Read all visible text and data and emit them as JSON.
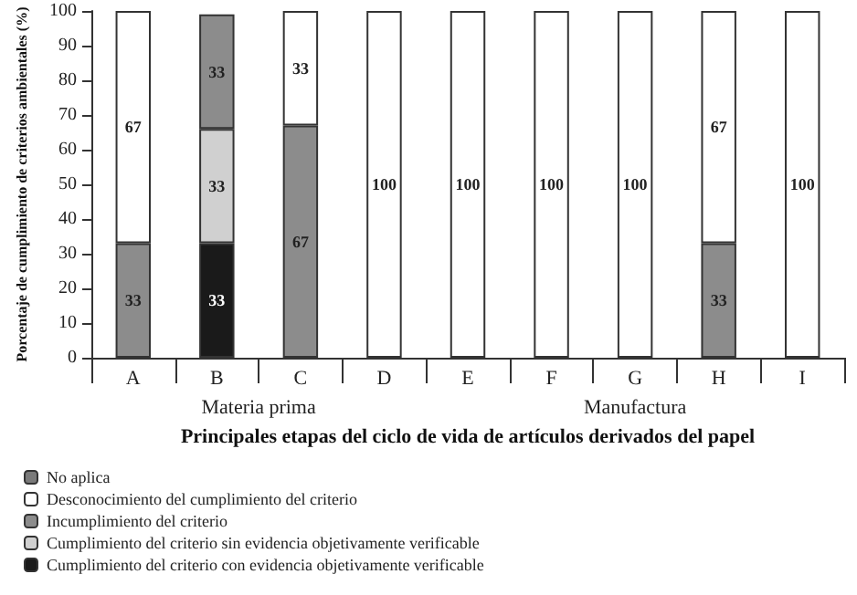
{
  "chart_data": {
    "type": "bar",
    "stacked": true,
    "xlabel": "Principales etapas del ciclo de vida de artículos derivados del papel",
    "ylabel": "Porcentaje de cumplimiento de criterios ambientales (%)",
    "categories": [
      "A",
      "B",
      "C",
      "D",
      "E",
      "F",
      "G",
      "H",
      "I"
    ],
    "series": [
      {
        "name": "Cumplimiento del criterio con evidencia objetivamente verificable",
        "color": "#1a1a1a",
        "values": [
          null,
          33,
          null,
          null,
          null,
          null,
          null,
          null,
          null
        ]
      },
      {
        "name": "Cumplimiento del criterio sin evidencia objetivamente verificable",
        "color": "#d0d0d0",
        "values": [
          null,
          33,
          null,
          null,
          null,
          null,
          null,
          null,
          null
        ]
      },
      {
        "name": "Incumplimiento del criterio",
        "color": "#8c8c8c",
        "values": [
          33,
          33,
          67,
          null,
          null,
          null,
          null,
          33,
          null
        ]
      },
      {
        "name": "Desconocimiento del cumplimiento del criterio",
        "color": "#ffffff",
        "values": [
          67,
          null,
          33,
          100,
          100,
          100,
          100,
          67,
          100
        ]
      },
      {
        "name": "No aplica",
        "color": "#7a7a7a",
        "values": [
          null,
          null,
          null,
          null,
          null,
          null,
          null,
          null,
          null
        ]
      }
    ],
    "ylim": [
      0,
      100
    ],
    "yticks": [
      0,
      10,
      20,
      30,
      40,
      50,
      60,
      70,
      80,
      90,
      100
    ],
    "annotations": [
      "Materia prima",
      "Manufactura"
    ],
    "data_labels": true,
    "grid": false,
    "legend": "bottom left"
  }
}
